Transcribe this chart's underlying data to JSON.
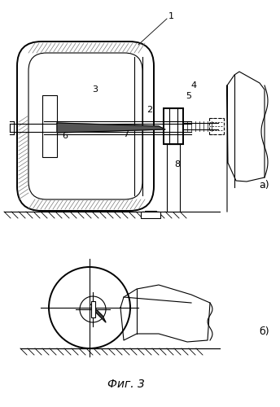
{
  "fig_label": "Фиг. 3",
  "label_a": "а)",
  "label_b": "б)",
  "bg_color": "#ffffff",
  "lc": "#000000",
  "lw": 0.8,
  "lw2": 1.4
}
